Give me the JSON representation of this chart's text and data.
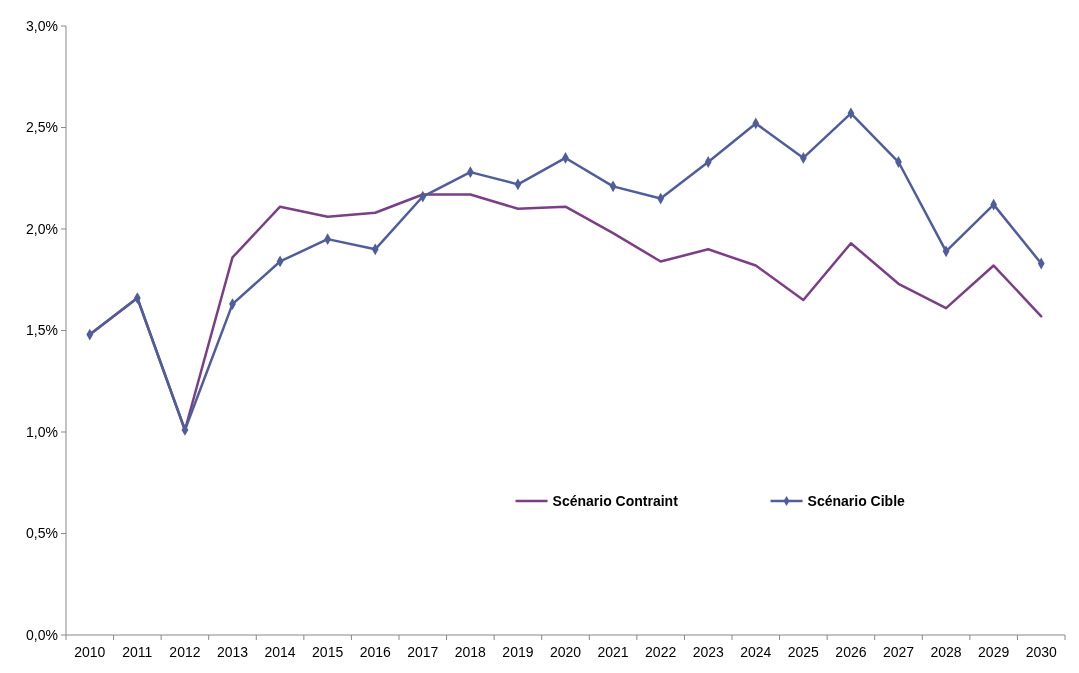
{
  "chart_data": {
    "type": "line",
    "categories": [
      "2010",
      "2011",
      "2012",
      "2013",
      "2014",
      "2015",
      "2016",
      "2017",
      "2018",
      "2019",
      "2020",
      "2021",
      "2022",
      "2023",
      "2024",
      "2025",
      "2026",
      "2027",
      "2028",
      "2029",
      "2030"
    ],
    "series": [
      {
        "name": "Scénario Contraint",
        "color": "#7b3f85",
        "marker": "none",
        "values": [
          1.48,
          1.66,
          1.01,
          1.86,
          2.11,
          2.06,
          2.08,
          2.17,
          2.17,
          2.1,
          2.11,
          1.98,
          1.84,
          1.9,
          1.82,
          1.65,
          1.93,
          1.73,
          1.61,
          1.82,
          1.57
        ]
      },
      {
        "name": "Scénario Cible",
        "color": "#4f5e9b",
        "marker": "diamond",
        "values": [
          1.48,
          1.66,
          1.01,
          1.63,
          1.84,
          1.95,
          1.9,
          2.16,
          2.28,
          2.22,
          2.35,
          2.21,
          2.15,
          2.33,
          2.52,
          2.35,
          2.57,
          2.33,
          1.89,
          2.12,
          1.83
        ]
      }
    ],
    "ylim": [
      0,
      3
    ],
    "yticks": [
      {
        "value": 0,
        "label": "0,0%"
      },
      {
        "value": 0.5,
        "label": "0,5%"
      },
      {
        "value": 1,
        "label": "1,0%"
      },
      {
        "value": 1.5,
        "label": "1,5%"
      },
      {
        "value": 2,
        "label": "2,0%"
      },
      {
        "value": 2.5,
        "label": "2,5%"
      },
      {
        "value": 3,
        "label": "3,0%"
      }
    ],
    "legend": "bottom",
    "grid": false,
    "line_style": "solid"
  }
}
